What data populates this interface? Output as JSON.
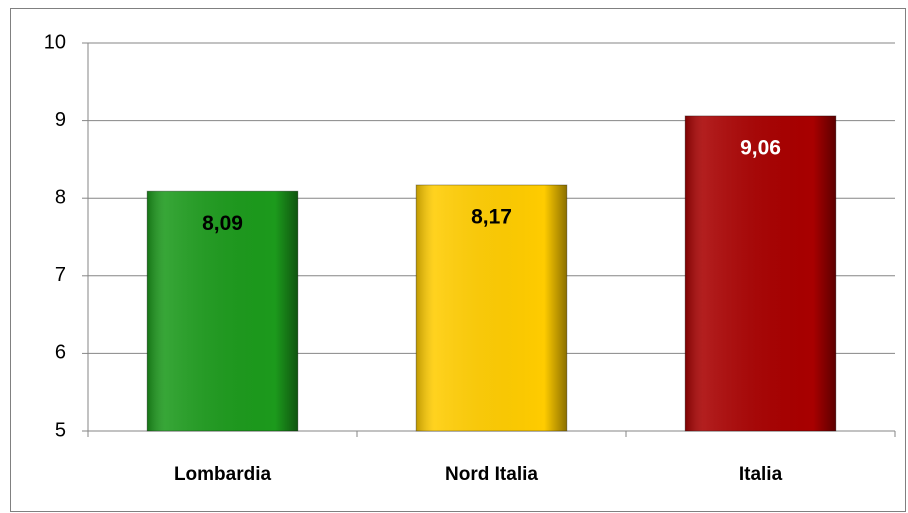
{
  "chart_data": {
    "type": "bar",
    "categories": [
      "Lombardia",
      "Nord Italia",
      "Italia"
    ],
    "values": [
      8.09,
      8.17,
      9.06
    ],
    "value_labels": [
      "8,09",
      "8,17",
      "9,06"
    ],
    "colors": [
      "#1c9a1c",
      "#ffcc00",
      "#a80000"
    ],
    "label_colors": [
      "#000000",
      "#000000",
      "#ffffff"
    ],
    "ylim": [
      5,
      10
    ],
    "yticks": [
      5,
      6,
      7,
      8,
      9,
      10
    ],
    "grid": true
  }
}
